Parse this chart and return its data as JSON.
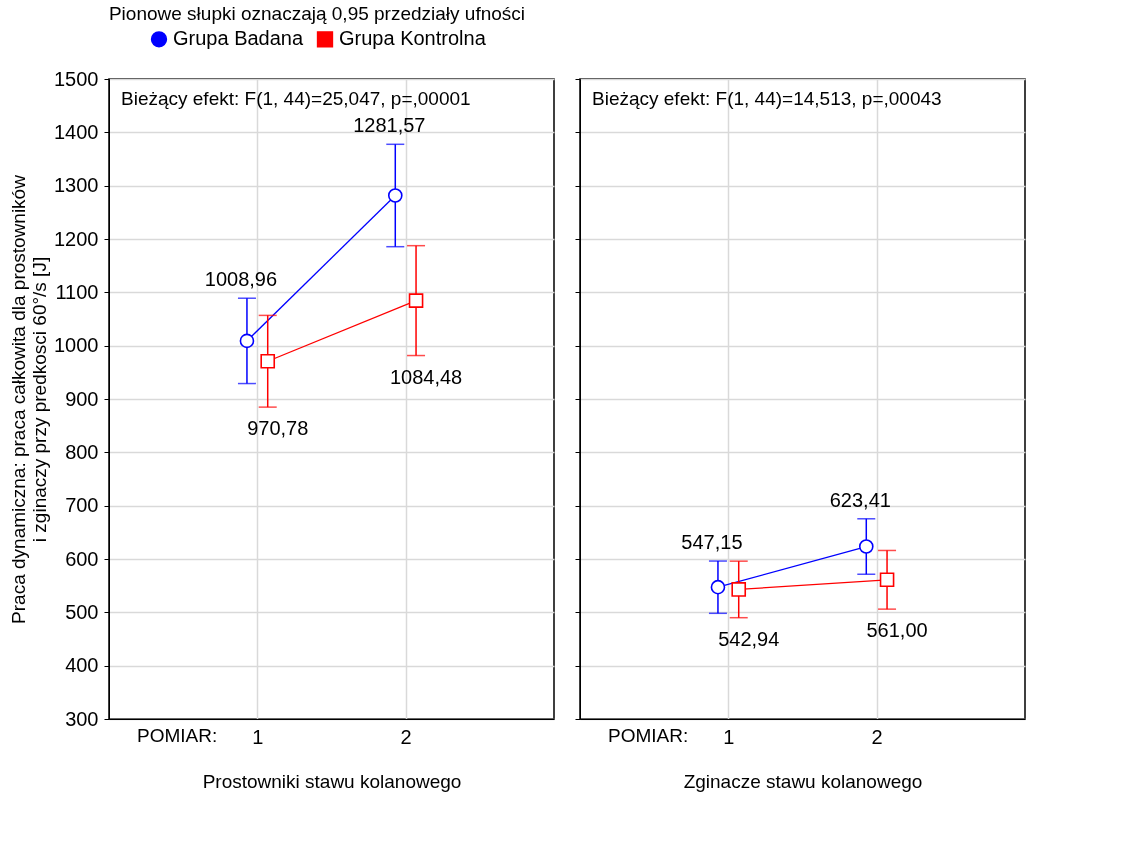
{
  "chart_data": [
    {
      "type": "line",
      "legend_title": "Pionowe słupki oznaczają 0,95 przedziały ufności",
      "ylabel": "Praca dynamiczna: praca całkowita dla prostowników\ni zginaczy przy predkosci 60°/s [J]",
      "xlabel": "Prostowniki stawu kolanowego",
      "annotations": [
        "Bieżący efekt: F(1, 44)=25,047, p=,00001",
        "POMIAR:"
      ],
      "categories": [
        "1",
        "2"
      ],
      "ylim": [
        300,
        1500
      ],
      "yticks": [
        300,
        400,
        500,
        600,
        700,
        800,
        900,
        1000,
        1100,
        1200,
        1300,
        1400,
        1500
      ],
      "grid": true,
      "legend": "top",
      "series": [
        {
          "name": "Grupa Badana",
          "color": "#0000ff",
          "marker": "circle",
          "values": [
            1008.96,
            1281.57
          ],
          "value_labels": [
            "1008,96",
            "1281,57"
          ],
          "errors": [
            80,
            96
          ]
        },
        {
          "name": "Grupa Kontrolna",
          "color": "#ff0000",
          "marker": "square",
          "values": [
            970.78,
            1084.48
          ],
          "value_labels": [
            "970,78",
            "1084,48"
          ],
          "errors": [
            86,
            103
          ]
        }
      ]
    },
    {
      "type": "line",
      "xlabel": "Zginacze stawu kolanowego",
      "annotations": [
        "Bieżący efekt: F(1, 44)=14,513, p=,00043",
        "POMIAR:"
      ],
      "categories": [
        "1",
        "2"
      ],
      "ylim": [
        300,
        1500
      ],
      "yticks": [
        300,
        400,
        500,
        600,
        700,
        800,
        900,
        1000,
        1100,
        1200,
        1300,
        1400,
        1500
      ],
      "grid": true,
      "tick_labels": "x",
      "series": [
        {
          "name": "Grupa Badana",
          "color": "#0000ff",
          "marker": "circle",
          "values": [
            547.15,
            623.41
          ],
          "value_labels": [
            "547,15",
            "623,41"
          ],
          "errors": [
            49,
            52
          ]
        },
        {
          "name": "Grupa Kontrolna",
          "color": "#ff0000",
          "marker": "square",
          "values": [
            542.94,
            561.0
          ],
          "value_labels": [
            "542,94",
            "561,00"
          ],
          "errors": [
            53,
            55
          ]
        }
      ]
    }
  ]
}
